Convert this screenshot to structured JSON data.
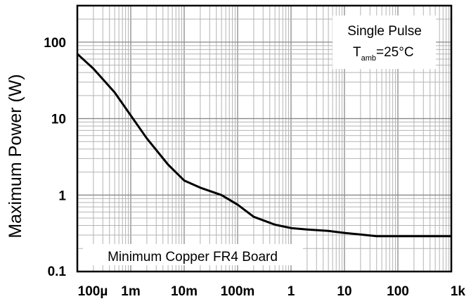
{
  "chart_data": {
    "type": "line",
    "title": "",
    "xlabel": "",
    "ylabel": "Maximum Power (W)",
    "x_scale": "log",
    "y_scale": "log",
    "xlim": [
      0.0001,
      1000
    ],
    "ylim": [
      0.1,
      300
    ],
    "grid": true,
    "x_ticks": [
      {
        "value": 0.0001,
        "label": "100µ"
      },
      {
        "value": 0.001,
        "label": "1m"
      },
      {
        "value": 0.01,
        "label": "10m"
      },
      {
        "value": 0.1,
        "label": "100m"
      },
      {
        "value": 1,
        "label": "1"
      },
      {
        "value": 10,
        "label": "10"
      },
      {
        "value": 100,
        "label": "100"
      },
      {
        "value": 1000,
        "label": "1k"
      }
    ],
    "y_ticks": [
      {
        "value": 0.1,
        "label": "0.1"
      },
      {
        "value": 1,
        "label": "1"
      },
      {
        "value": 10,
        "label": "10"
      },
      {
        "value": 100,
        "label": "100"
      }
    ],
    "series": [
      {
        "color": "#000000",
        "x": [
          0.0001,
          0.0002,
          0.0005,
          0.001,
          0.002,
          0.005,
          0.01,
          0.02,
          0.05,
          0.1,
          0.2,
          0.5,
          1,
          2,
          5,
          10,
          20,
          40,
          100,
          300,
          1000
        ],
        "y": [
          70,
          45,
          22,
          11,
          5.5,
          2.5,
          1.55,
          1.25,
          1.0,
          0.75,
          0.52,
          0.41,
          0.37,
          0.355,
          0.34,
          0.32,
          0.305,
          0.29,
          0.29,
          0.29,
          0.29
        ]
      }
    ],
    "annotations": {
      "pulse_line": "Single Pulse",
      "temp_symbol": "T",
      "temp_subscript": "amb",
      "temp_value": "=25°C",
      "board_label": "Minimum Copper FR4 Board"
    }
  }
}
